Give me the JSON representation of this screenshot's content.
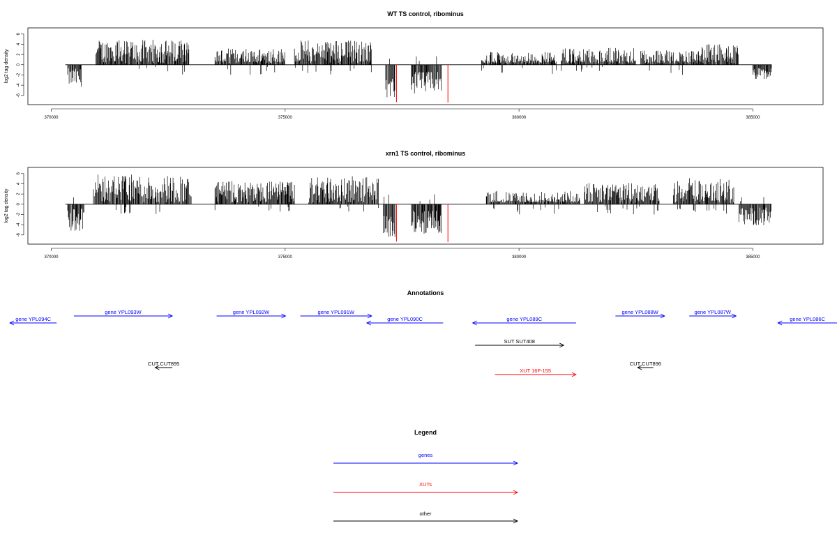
{
  "chart_data": [
    {
      "type": "bar",
      "title": "WT TS control, ribominus",
      "ylabel": "log2 tag density",
      "xlim": [
        369500,
        386500
      ],
      "ylim": [
        -7.8,
        7.2
      ],
      "x_ticks": [
        370000,
        375000,
        380000,
        385000
      ],
      "y_ticks": [
        -6,
        -4,
        -2,
        0,
        2,
        4,
        6
      ],
      "baseline_range": [
        370300,
        385400
      ],
      "series": [
        {
          "segments": [
            {
              "start": 370350,
              "end": 370650,
              "mean": -2.5,
              "amp": 1.8
            },
            {
              "start": 370950,
              "end": 372950,
              "mean": 2.5,
              "amp": 2.4
            },
            {
              "start": 373500,
              "end": 375000,
              "mean": 1.5,
              "amp": 1.7
            },
            {
              "start": 375200,
              "end": 376850,
              "mean": 2.3,
              "amp": 2.6
            },
            {
              "start": 379200,
              "end": 380800,
              "mean": 0.5,
              "amp": 2.0
            },
            {
              "start": 380900,
              "end": 382500,
              "mean": 1.3,
              "amp": 2.0
            },
            {
              "start": 382600,
              "end": 383900,
              "mean": 1.0,
              "amp": 1.8
            },
            {
              "start": 383900,
              "end": 384700,
              "mean": 2.0,
              "amp": 2.0
            },
            {
              "start": 385000,
              "end": 385400,
              "mean": -1.8,
              "amp": 1.2
            }
          ]
        },
        {
          "segments": [
            {
              "start": 377150,
              "end": 377350,
              "mean": -4.5,
              "amp": 2.0
            },
            {
              "start": 377700,
              "end": 378350,
              "mean": -3.5,
              "amp": 2.2
            }
          ]
        }
      ],
      "red_spikes": [
        {
          "x": 377380,
          "y": -7.3
        },
        {
          "x": 378480,
          "y": -7.4
        }
      ]
    },
    {
      "type": "bar",
      "title": "xrn1 TS control, ribominus",
      "ylabel": "log2 tag density",
      "xlim": [
        369500,
        386500
      ],
      "ylim": [
        -7.8,
        7.2
      ],
      "x_ticks": [
        370000,
        375000,
        380000,
        385000
      ],
      "y_ticks": [
        -6,
        -4,
        -2,
        0,
        2,
        4,
        6
      ],
      "baseline_range": [
        370300,
        385400
      ],
      "series": [
        {
          "segments": [
            {
              "start": 370350,
              "end": 370700,
              "mean": -3.0,
              "amp": 2.2
            },
            {
              "start": 370900,
              "end": 373000,
              "mean": 3.0,
              "amp": 2.8
            },
            {
              "start": 373500,
              "end": 375200,
              "mean": 2.3,
              "amp": 2.2
            },
            {
              "start": 375500,
              "end": 377000,
              "mean": 2.8,
              "amp": 2.7
            },
            {
              "start": 379300,
              "end": 381300,
              "mean": 0.8,
              "amp": 1.8
            },
            {
              "start": 381400,
              "end": 383000,
              "mean": 2.0,
              "amp": 2.2
            },
            {
              "start": 383300,
              "end": 384600,
              "mean": 2.6,
              "amp": 2.7
            },
            {
              "start": 384700,
              "end": 385400,
              "mean": -2.4,
              "amp": 1.8
            }
          ]
        },
        {
          "segments": [
            {
              "start": 377100,
              "end": 377350,
              "mean": -4.5,
              "amp": 2.2
            },
            {
              "start": 377700,
              "end": 378350,
              "mean": -3.5,
              "amp": 2.3
            }
          ]
        }
      ],
      "red_spikes": [
        {
          "x": 377380,
          "y": -7.3
        },
        {
          "x": 378480,
          "y": -7.4
        }
      ]
    }
  ],
  "annotations": {
    "title": "Annotations",
    "xlim": [
      369500,
      386500
    ],
    "features": [
      {
        "label": "gene YPL094C",
        "start": 370650,
        "end": 369700,
        "row": 1,
        "color": "#0000ff"
      },
      {
        "label": "gene YPL093W",
        "start": 371000,
        "end": 373000,
        "row": 0,
        "color": "#0000ff"
      },
      {
        "label": "gene YPL092W",
        "start": 373900,
        "end": 375300,
        "row": 0,
        "color": "#0000ff"
      },
      {
        "label": "gene YPL091W",
        "start": 375600,
        "end": 377050,
        "row": 0,
        "color": "#0000ff"
      },
      {
        "label": "gene YPL090C",
        "start": 378500,
        "end": 376950,
        "row": 1,
        "color": "#0000ff"
      },
      {
        "label": "gene YPL089C",
        "start": 381200,
        "end": 379100,
        "row": 1,
        "color": "#0000ff"
      },
      {
        "label": "gene YPL088W",
        "start": 382000,
        "end": 383000,
        "row": 0,
        "color": "#0000ff"
      },
      {
        "label": "gene YPL087W",
        "start": 383500,
        "end": 384450,
        "row": 0,
        "color": "#0000ff"
      },
      {
        "label": "gene YPL086C",
        "start": 386500,
        "end": 385300,
        "row": 1,
        "color": "#0000ff"
      },
      {
        "label": "SUT SUT408",
        "start": 379150,
        "end": 380950,
        "row": 2,
        "color": "#000000"
      },
      {
        "label": "CUT CUT895",
        "start": 373000,
        "end": 372650,
        "row": 3,
        "color": "#000000"
      },
      {
        "label": "CUT CUT896",
        "start": 382770,
        "end": 382450,
        "row": 3,
        "color": "#000000"
      },
      {
        "label": "XUT 16F-155",
        "start": 379550,
        "end": 381200,
        "row": 4,
        "color": "#ff0000"
      }
    ]
  },
  "legend": {
    "title": "Legend",
    "items": [
      {
        "label": "genes",
        "color": "#0000ff"
      },
      {
        "label": "XUTs",
        "color": "#ff0000"
      },
      {
        "label": "other",
        "color": "#000000"
      }
    ]
  }
}
